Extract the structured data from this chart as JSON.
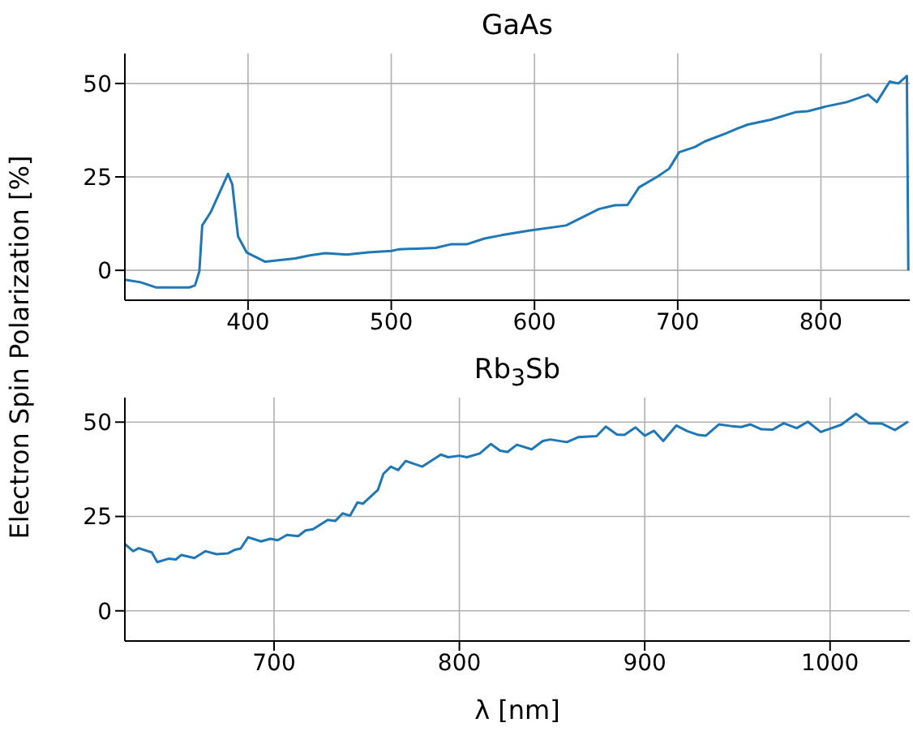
{
  "chart_data": [
    {
      "type": "line",
      "title": "GaAs",
      "ylabel": "Electron Spin Polarization [%]",
      "xlim": [
        314,
        862
      ],
      "xticks": [
        400,
        500,
        600,
        700,
        800
      ],
      "ylim": [
        -8,
        58
      ],
      "yticks": [
        0,
        25,
        50
      ],
      "grid": true,
      "marker": "none",
      "line_style": "solid",
      "series": [
        {
          "color": "#1f77b4",
          "x": [
            314,
            325,
            336,
            359,
            363,
            366,
            368,
            374,
            386,
            389,
            393,
            399,
            412,
            433,
            443,
            454,
            469,
            484,
            500,
            505,
            531,
            542,
            553,
            565,
            577,
            596,
            622,
            645,
            656,
            665,
            673,
            686,
            694,
            701,
            712,
            719,
            734,
            742,
            749,
            765,
            782,
            791,
            803,
            818,
            833,
            839,
            848,
            854,
            860,
            861
          ],
          "values": [
            -2.5,
            -3.2,
            -4.6,
            -4.6,
            -4.0,
            -0.3,
            12,
            15.6,
            25.8,
            23,
            9.1,
            4.8,
            2.3,
            3.2,
            4.0,
            4.6,
            4.2,
            4.8,
            5.2,
            5.6,
            6.0,
            7,
            7,
            8.5,
            9.4,
            10.6,
            12,
            16.4,
            17.4,
            17.5,
            22.2,
            25.1,
            27.2,
            31.6,
            33,
            34.5,
            36.7,
            38,
            39,
            40.3,
            42.3,
            42.6,
            43.8,
            45,
            47,
            45,
            50.5,
            50,
            52,
            0
          ]
        }
      ]
    },
    {
      "type": "line",
      "title": "Rb$_{3}$Sb",
      "xlabel": "λ [nm]",
      "xlim": [
        619.5,
        1043
      ],
      "xticks": [
        700,
        800,
        900,
        1000
      ],
      "ylim": [
        -8,
        56.5
      ],
      "yticks": [
        0,
        25,
        50
      ],
      "grid": true,
      "marker": "none",
      "line_style": "solid",
      "series": [
        {
          "color": "#1f77b4",
          "x": [
            619.5,
            624,
            627,
            634,
            637,
            643,
            647,
            650,
            657,
            663,
            669,
            675,
            679,
            682,
            686,
            693,
            698,
            702,
            707,
            713,
            717,
            721,
            729,
            733,
            737,
            741,
            745,
            748,
            756,
            759,
            763,
            767,
            771,
            780,
            790,
            794,
            800,
            804,
            811,
            817,
            822,
            826,
            831,
            839,
            845,
            849,
            858,
            864,
            874,
            879,
            885,
            889,
            895,
            900,
            905,
            910,
            917,
            923,
            929,
            933,
            940,
            946,
            952,
            957,
            963,
            969,
            975,
            982,
            988,
            995,
            1006,
            1014,
            1021,
            1028,
            1035,
            1042
          ],
          "values": [
            17.7,
            15.8,
            16.6,
            15.5,
            12.9,
            13.8,
            13.6,
            14.8,
            14,
            15.8,
            15,
            15.2,
            16.2,
            16.5,
            19.5,
            18.4,
            19.1,
            18.7,
            20.1,
            19.8,
            21.3,
            21.6,
            24.1,
            23.8,
            25.8,
            25.2,
            28.7,
            28.4,
            32,
            36.3,
            38.2,
            37.3,
            39.7,
            38.2,
            41.4,
            40.7,
            41.1,
            40.7,
            41.7,
            44.2,
            42.4,
            42.1,
            44,
            42.8,
            45,
            45.4,
            44.7,
            46,
            46.3,
            48.8,
            46.7,
            46.6,
            48.6,
            46.4,
            47.7,
            45,
            49.1,
            47.6,
            46.6,
            46.4,
            49.4,
            49,
            48.7,
            49.4,
            48.1,
            48,
            49.7,
            48.4,
            50.1,
            47.4,
            49.3,
            52.2,
            49.7,
            49.6,
            47.9,
            50.1
          ]
        }
      ]
    }
  ]
}
